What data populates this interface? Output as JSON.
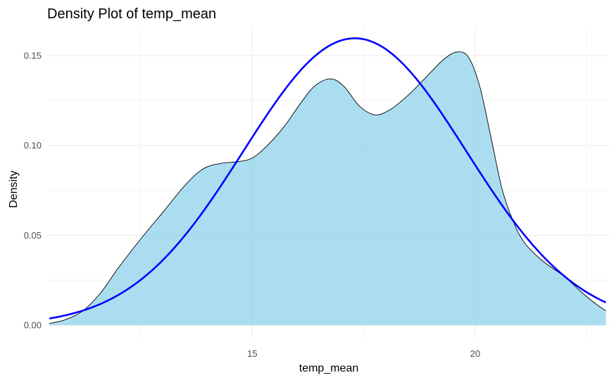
{
  "chart_data": {
    "type": "area",
    "title": "Density Plot of temp_mean",
    "xlabel": "temp_mean",
    "ylabel": "Density",
    "xlim": [
      10.4,
      23.0
    ],
    "ylim": [
      -0.007,
      0.166
    ],
    "x_ticks": [
      15,
      20
    ],
    "x_tick_labels": [
      "15",
      "20"
    ],
    "x_minor_ticks": [
      12.5,
      17.5,
      22.5
    ],
    "y_ticks": [
      0.0,
      0.05,
      0.1,
      0.15
    ],
    "y_tick_labels": [
      "0.00",
      "0.05",
      "0.10",
      "0.15"
    ],
    "y_minor_ticks": [
      0.025,
      0.075,
      0.125
    ],
    "grid": true,
    "legend": "none",
    "series": [
      {
        "kind": "density-area",
        "fill": "#87CEEB",
        "fill_opacity": 0.7,
        "stroke": "#000000",
        "points": [
          [
            10.45,
            0.001
          ],
          [
            10.8,
            0.003
          ],
          [
            11.2,
            0.008
          ],
          [
            11.6,
            0.018
          ],
          [
            12.0,
            0.032
          ],
          [
            12.5,
            0.048
          ],
          [
            13.0,
            0.063
          ],
          [
            13.5,
            0.078
          ],
          [
            13.9,
            0.087
          ],
          [
            14.3,
            0.09
          ],
          [
            14.7,
            0.091
          ],
          [
            15.0,
            0.093
          ],
          [
            15.3,
            0.099
          ],
          [
            15.7,
            0.11
          ],
          [
            16.1,
            0.124
          ],
          [
            16.4,
            0.133
          ],
          [
            16.75,
            0.137
          ],
          [
            17.05,
            0.133
          ],
          [
            17.4,
            0.122
          ],
          [
            17.75,
            0.117
          ],
          [
            18.1,
            0.12
          ],
          [
            18.5,
            0.128
          ],
          [
            18.9,
            0.138
          ],
          [
            19.3,
            0.148
          ],
          [
            19.6,
            0.152
          ],
          [
            19.85,
            0.149
          ],
          [
            20.1,
            0.133
          ],
          [
            20.35,
            0.105
          ],
          [
            20.6,
            0.076
          ],
          [
            20.85,
            0.058
          ],
          [
            21.1,
            0.046
          ],
          [
            21.5,
            0.036
          ],
          [
            22.0,
            0.027
          ],
          [
            22.4,
            0.018
          ],
          [
            22.7,
            0.012
          ],
          [
            22.93,
            0.008
          ]
        ]
      },
      {
        "kind": "normal-curve",
        "stroke": "#0000FF",
        "mean": 17.3,
        "sd": 2.5
      }
    ]
  }
}
